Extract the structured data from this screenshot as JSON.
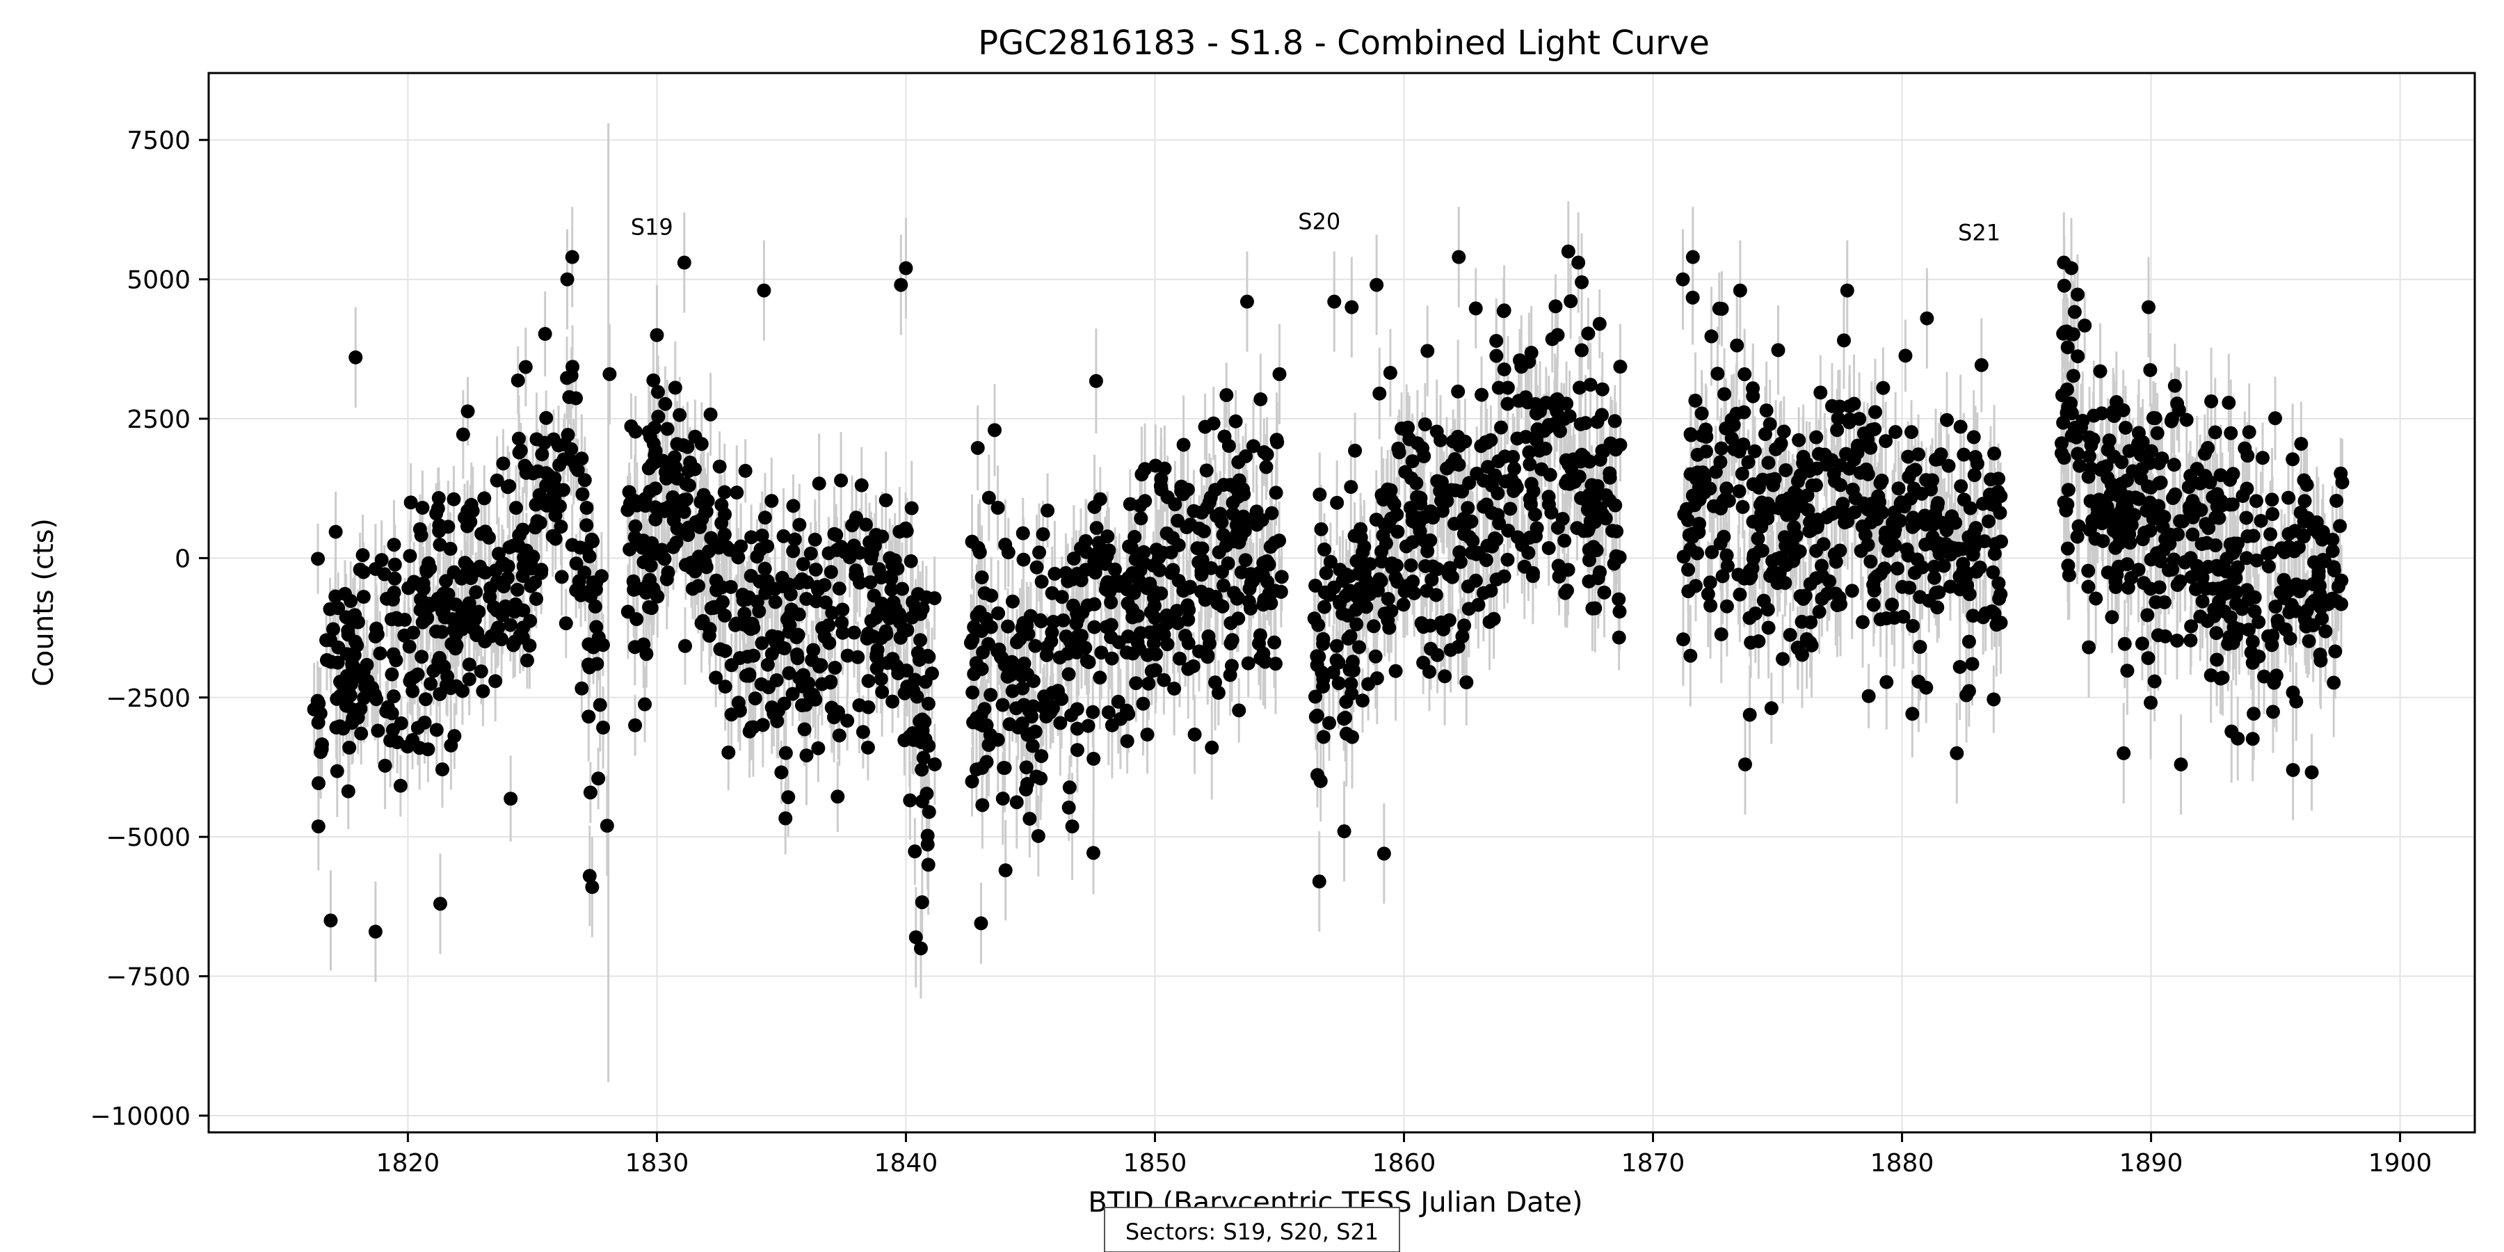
{
  "chart_data": {
    "type": "scatter",
    "title": "PGC2816183 - S1.8 - Combined Light Curve",
    "xlabel": "BTJD (Barycentric TESS Julian Date)",
    "ylabel": "Counts (cts)",
    "xlim": [
      1812,
      1903
    ],
    "ylim": [
      -10300,
      8700
    ],
    "x_ticks": [
      1820,
      1830,
      1840,
      1850,
      1860,
      1870,
      1880,
      1890,
      1900
    ],
    "y_ticks": [
      7500,
      5000,
      2500,
      0,
      -2500,
      -5000,
      -7500,
      -10000
    ],
    "x_tick_labels": [
      "1820",
      "1830",
      "1840",
      "1850",
      "1860",
      "1870",
      "1880",
      "1890",
      "1900"
    ],
    "y_tick_labels": [
      "7500",
      "5000",
      "2500",
      "0",
      "−2500",
      "−5000",
      "−7500",
      "−10000"
    ],
    "grid": true,
    "marker_color": "#000000",
    "errorbar_color": "#cccccc",
    "sector_labels": [
      {
        "text": "S19",
        "x": 1829.8,
        "y": 5800
      },
      {
        "text": "S20",
        "x": 1856.6,
        "y": 5900
      },
      {
        "text": "S21",
        "x": 1883.1,
        "y": 5700
      }
    ],
    "segments": [
      {
        "x_start": 1816.2,
        "x_end": 1827.9,
        "trend": [
          [
            1816.2,
            -2300
          ],
          [
            1820.0,
            -1500
          ],
          [
            1824.0,
            -200
          ],
          [
            1826.5,
            1500
          ],
          [
            1827.9,
            -3000
          ]
        ],
        "scatter": 1200,
        "error": 700,
        "n": 380
      },
      {
        "x_start": 1828.8,
        "x_end": 1841.2,
        "trend": [
          [
            1828.8,
            -500
          ],
          [
            1830.5,
            1500
          ],
          [
            1833.0,
            -800
          ],
          [
            1836.5,
            -1500
          ],
          [
            1839.5,
            -400
          ],
          [
            1841.2,
            -3800
          ]
        ],
        "scatter": 1250,
        "error": 750,
        "n": 430
      },
      {
        "x_start": 1842.6,
        "x_end": 1855.1,
        "trend": [
          [
            1842.6,
            -2300
          ],
          [
            1846.0,
            -1700
          ],
          [
            1850.0,
            -400
          ],
          [
            1853.0,
            100
          ],
          [
            1855.1,
            -500
          ]
        ],
        "scatter": 1300,
        "error": 800,
        "n": 430
      },
      {
        "x_start": 1856.4,
        "x_end": 1868.8,
        "trend": [
          [
            1856.4,
            -2000
          ],
          [
            1858.0,
            -700
          ],
          [
            1861.0,
            600
          ],
          [
            1864.0,
            1300
          ],
          [
            1866.5,
            1700
          ],
          [
            1868.8,
            600
          ]
        ],
        "scatter": 1250,
        "error": 800,
        "n": 430
      },
      {
        "x_start": 1871.2,
        "x_end": 1884.0,
        "trend": [
          [
            1871.2,
            1000
          ],
          [
            1875.0,
            600
          ],
          [
            1878.5,
            900
          ],
          [
            1881.0,
            400
          ],
          [
            1884.0,
            100
          ]
        ],
        "scatter": 1250,
        "error": 800,
        "n": 430
      },
      {
        "x_start": 1886.4,
        "x_end": 1897.7,
        "trend": [
          [
            1886.4,
            2800
          ],
          [
            1888.0,
            900
          ],
          [
            1891.0,
            300
          ],
          [
            1894.0,
            -400
          ],
          [
            1897.7,
            0
          ]
        ],
        "scatter": 1200,
        "error": 850,
        "n": 400
      }
    ],
    "highlight_points": [
      {
        "x": 1816.9,
        "y": -6500
      },
      {
        "x": 1818.7,
        "y": -6700
      },
      {
        "x": 1821.3,
        "y": -6200
      },
      {
        "x": 1817.9,
        "y": 3600
      },
      {
        "x": 1826.6,
        "y": 5400
      },
      {
        "x": 1826.4,
        "y": 5000
      },
      {
        "x": 1827.3,
        "y": -5700
      },
      {
        "x": 1827.4,
        "y": -5900
      },
      {
        "x": 1828.1,
        "y": 3300
      },
      {
        "x": 1828.0,
        "y": -4800
      },
      {
        "x": 1831.1,
        "y": 5300
      },
      {
        "x": 1834.3,
        "y": 4800
      },
      {
        "x": 1830.0,
        "y": 4000
      },
      {
        "x": 1840.0,
        "y": 5200
      },
      {
        "x": 1839.8,
        "y": 4900
      },
      {
        "x": 1840.4,
        "y": -6800
      },
      {
        "x": 1840.6,
        "y": -7000
      },
      {
        "x": 1840.9,
        "y": -5500
      },
      {
        "x": 1844.0,
        "y": -5600
      },
      {
        "x": 1853.7,
        "y": 4600
      },
      {
        "x": 1855.0,
        "y": 3300
      },
      {
        "x": 1856.6,
        "y": -5800
      },
      {
        "x": 1857.6,
        "y": -4900
      },
      {
        "x": 1857.9,
        "y": 4500
      },
      {
        "x": 1857.2,
        "y": 4600
      },
      {
        "x": 1858.9,
        "y": 4900
      },
      {
        "x": 1859.2,
        "y": -5300
      },
      {
        "x": 1862.2,
        "y": 5400
      },
      {
        "x": 1866.6,
        "y": 5500
      },
      {
        "x": 1867.0,
        "y": 5300
      },
      {
        "x": 1871.2,
        "y": 5000
      },
      {
        "x": 1871.6,
        "y": 5400
      },
      {
        "x": 1873.5,
        "y": 4800
      },
      {
        "x": 1873.7,
        "y": -3700
      },
      {
        "x": 1877.8,
        "y": 4800
      },
      {
        "x": 1881.0,
        "y": 4300
      },
      {
        "x": 1882.2,
        "y": -3500
      },
      {
        "x": 1886.5,
        "y": 5300
      },
      {
        "x": 1886.8,
        "y": 5200
      },
      {
        "x": 1889.9,
        "y": 4500
      },
      {
        "x": 1891.2,
        "y": -3700
      },
      {
        "x": 1888.9,
        "y": -3500
      },
      {
        "x": 1895.7,
        "y": -3800
      },
      {
        "x": 1887.5,
        "y": -1600
      }
    ],
    "footer": "Sectors: S19, S20, S21"
  }
}
